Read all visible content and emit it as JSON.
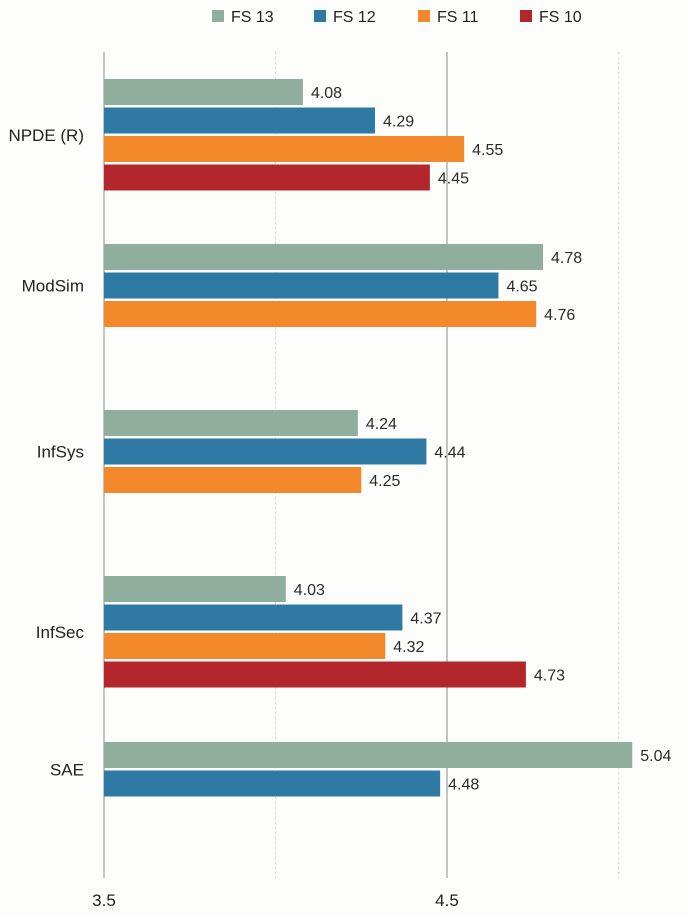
{
  "chart_data": {
    "type": "bar",
    "orientation": "horizontal",
    "title": "",
    "xlabel": "",
    "ylabel": "",
    "categories": [
      "NPDE (R)",
      "ModSim",
      "InfSys",
      "InfSec",
      "SAE"
    ],
    "series": [
      {
        "name": "FS 13",
        "color": "#8fae9e",
        "values": [
          4.08,
          4.78,
          4.24,
          4.03,
          5.04
        ]
      },
      {
        "name": "FS 12",
        "color": "#2f7aa4",
        "values": [
          4.29,
          4.65,
          4.44,
          4.37,
          4.48
        ]
      },
      {
        "name": "FS 11",
        "color": "#f2882a",
        "values": [
          4.55,
          4.76,
          4.25,
          4.32,
          null
        ]
      },
      {
        "name": "FS 10",
        "color": "#b3262b",
        "values": [
          4.45,
          null,
          null,
          4.73,
          null
        ]
      }
    ],
    "data_labels": [
      [
        "4.08",
        "4.29",
        "4.55",
        "4.45"
      ],
      [
        "4.78",
        "4.65",
        "4.76"
      ],
      [
        "4.24",
        "4.44",
        "4.25"
      ],
      [
        "4.03",
        "4.37",
        "4.32",
        "4.73"
      ],
      [
        "5.04",
        "4.48"
      ]
    ],
    "xlim": [
      3.5,
      5.5
    ],
    "x_ticks": [
      3.5,
      4.5
    ],
    "x_tick_labels": [
      "3.5",
      "4.5"
    ],
    "grid": true,
    "legend_position": "top"
  }
}
